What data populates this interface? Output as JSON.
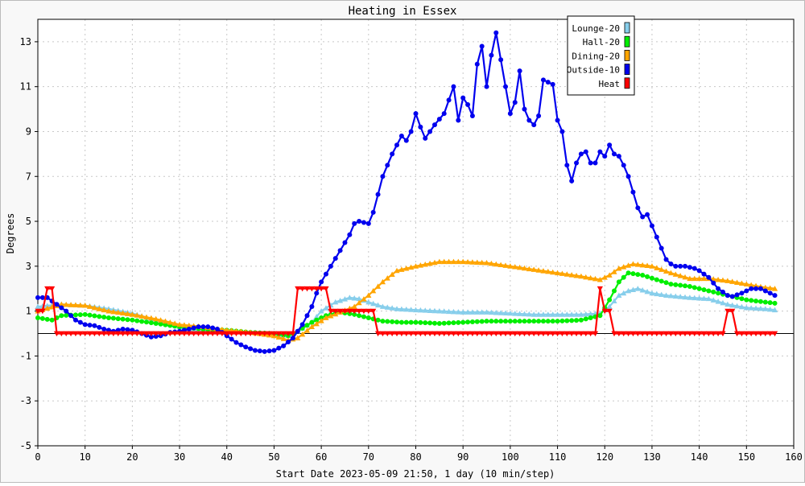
{
  "chart_data": {
    "type": "line",
    "title": "Heating in Essex",
    "xlabel": "Start Date 2023-05-09 21:50, 1 day (10 min/step)",
    "ylabel": "Degrees",
    "xlim": [
      0,
      160
    ],
    "ylim": [
      -5,
      14
    ],
    "x_ticks": [
      0,
      10,
      20,
      30,
      40,
      50,
      60,
      70,
      80,
      90,
      100,
      110,
      120,
      130,
      140,
      150,
      160
    ],
    "y_ticks": [
      -5,
      -3,
      -1,
      1,
      3,
      5,
      7,
      9,
      11,
      13
    ],
    "grid": true,
    "zero_line": true,
    "legend_position": "top-right",
    "series": [
      {
        "name": "Lounge-20",
        "color": "#87ceeb",
        "marker": "triangle",
        "points": [
          [
            0,
            1.2
          ],
          [
            5,
            1.3
          ],
          [
            10,
            1.25
          ],
          [
            15,
            1.1
          ],
          [
            20,
            0.9
          ],
          [
            25,
            0.6
          ],
          [
            30,
            0.3
          ],
          [
            35,
            0.15
          ],
          [
            40,
            0.1
          ],
          [
            45,
            0.05
          ],
          [
            50,
            0.0
          ],
          [
            53,
            -0.1
          ],
          [
            55,
            0.1
          ],
          [
            58,
            0.5
          ],
          [
            60,
            1.0
          ],
          [
            63,
            1.4
          ],
          [
            66,
            1.6
          ],
          [
            68,
            1.55
          ],
          [
            70,
            1.4
          ],
          [
            73,
            1.2
          ],
          [
            76,
            1.1
          ],
          [
            80,
            1.05
          ],
          [
            85,
            1.0
          ],
          [
            90,
            0.95
          ],
          [
            95,
            0.95
          ],
          [
            100,
            0.9
          ],
          [
            105,
            0.85
          ],
          [
            110,
            0.85
          ],
          [
            115,
            0.85
          ],
          [
            119,
            0.9
          ],
          [
            121,
            1.2
          ],
          [
            123,
            1.7
          ],
          [
            125,
            1.9
          ],
          [
            127,
            2.0
          ],
          [
            130,
            1.8
          ],
          [
            133,
            1.7
          ],
          [
            138,
            1.6
          ],
          [
            142,
            1.55
          ],
          [
            146,
            1.3
          ],
          [
            150,
            1.15
          ],
          [
            154,
            1.1
          ],
          [
            156,
            1.05
          ]
        ]
      },
      {
        "name": "Hall-20",
        "color": "#00ee00",
        "marker": "circle",
        "points": [
          [
            0,
            0.7
          ],
          [
            3,
            0.6
          ],
          [
            5,
            0.8
          ],
          [
            10,
            0.85
          ],
          [
            15,
            0.7
          ],
          [
            20,
            0.6
          ],
          [
            25,
            0.45
          ],
          [
            30,
            0.3
          ],
          [
            35,
            0.2
          ],
          [
            40,
            0.15
          ],
          [
            45,
            0.05
          ],
          [
            50,
            0.0
          ],
          [
            53,
            -0.1
          ],
          [
            55,
            0.1
          ],
          [
            58,
            0.5
          ],
          [
            61,
            0.8
          ],
          [
            64,
            0.95
          ],
          [
            67,
            0.85
          ],
          [
            70,
            0.7
          ],
          [
            73,
            0.55
          ],
          [
            77,
            0.5
          ],
          [
            80,
            0.5
          ],
          [
            85,
            0.45
          ],
          [
            90,
            0.5
          ],
          [
            95,
            0.55
          ],
          [
            100,
            0.55
          ],
          [
            105,
            0.55
          ],
          [
            110,
            0.55
          ],
          [
            115,
            0.6
          ],
          [
            119,
            0.8
          ],
          [
            121,
            1.5
          ],
          [
            123,
            2.3
          ],
          [
            125,
            2.7
          ],
          [
            128,
            2.6
          ],
          [
            131,
            2.4
          ],
          [
            134,
            2.2
          ],
          [
            138,
            2.1
          ],
          [
            142,
            1.9
          ],
          [
            146,
            1.7
          ],
          [
            150,
            1.5
          ],
          [
            154,
            1.4
          ],
          [
            156,
            1.35
          ]
        ]
      },
      {
        "name": "Dining-20",
        "color": "#ffa500",
        "marker": "triangle",
        "points": [
          [
            0,
            1.0
          ],
          [
            5,
            1.3
          ],
          [
            10,
            1.25
          ],
          [
            15,
            1.0
          ],
          [
            20,
            0.85
          ],
          [
            25,
            0.65
          ],
          [
            30,
            0.4
          ],
          [
            35,
            0.3
          ],
          [
            40,
            0.15
          ],
          [
            45,
            0.05
          ],
          [
            50,
            -0.1
          ],
          [
            53,
            -0.3
          ],
          [
            55,
            -0.2
          ],
          [
            58,
            0.3
          ],
          [
            61,
            0.7
          ],
          [
            64,
            0.95
          ],
          [
            67,
            1.2
          ],
          [
            70,
            1.7
          ],
          [
            73,
            2.3
          ],
          [
            76,
            2.8
          ],
          [
            80,
            3.0
          ],
          [
            85,
            3.2
          ],
          [
            90,
            3.2
          ],
          [
            95,
            3.15
          ],
          [
            100,
            3.0
          ],
          [
            105,
            2.85
          ],
          [
            110,
            2.7
          ],
          [
            115,
            2.55
          ],
          [
            119,
            2.4
          ],
          [
            121,
            2.6
          ],
          [
            123,
            2.9
          ],
          [
            126,
            3.1
          ],
          [
            130,
            3.0
          ],
          [
            134,
            2.7
          ],
          [
            138,
            2.45
          ],
          [
            142,
            2.45
          ],
          [
            146,
            2.35
          ],
          [
            150,
            2.2
          ],
          [
            154,
            2.05
          ],
          [
            156,
            2.0
          ]
        ]
      },
      {
        "name": "Outside-10",
        "color": "#0000ee",
        "marker": "circle",
        "points": [
          [
            0,
            1.6
          ],
          [
            2,
            1.6
          ],
          [
            4,
            1.3
          ],
          [
            6,
            1.0
          ],
          [
            8,
            0.6
          ],
          [
            10,
            0.4
          ],
          [
            12,
            0.35
          ],
          [
            14,
            0.2
          ],
          [
            16,
            0.1
          ],
          [
            18,
            0.2
          ],
          [
            20,
            0.15
          ],
          [
            22,
            0.0
          ],
          [
            24,
            -0.15
          ],
          [
            26,
            -0.1
          ],
          [
            28,
            0.05
          ],
          [
            30,
            0.1
          ],
          [
            32,
            0.2
          ],
          [
            34,
            0.3
          ],
          [
            36,
            0.3
          ],
          [
            38,
            0.2
          ],
          [
            40,
            -0.1
          ],
          [
            42,
            -0.4
          ],
          [
            44,
            -0.6
          ],
          [
            46,
            -0.75
          ],
          [
            48,
            -0.8
          ],
          [
            50,
            -0.75
          ],
          [
            52,
            -0.55
          ],
          [
            54,
            -0.2
          ],
          [
            56,
            0.4
          ],
          [
            58,
            1.2
          ],
          [
            59,
            1.8
          ],
          [
            60,
            2.3
          ],
          [
            62,
            3.0
          ],
          [
            64,
            3.7
          ],
          [
            66,
            4.4
          ],
          [
            67,
            4.9
          ],
          [
            68,
            5.0
          ],
          [
            70,
            4.9
          ],
          [
            71,
            5.4
          ],
          [
            72,
            6.2
          ],
          [
            73,
            7.0
          ],
          [
            75,
            8.0
          ],
          [
            77,
            8.8
          ],
          [
            78,
            8.6
          ],
          [
            79,
            9.0
          ],
          [
            80,
            9.8
          ],
          [
            81,
            9.2
          ],
          [
            82,
            8.7
          ],
          [
            84,
            9.3
          ],
          [
            86,
            9.8
          ],
          [
            87,
            10.4
          ],
          [
            88,
            11.0
          ],
          [
            89,
            9.5
          ],
          [
            90,
            10.5
          ],
          [
            91,
            10.2
          ],
          [
            92,
            9.7
          ],
          [
            93,
            12.0
          ],
          [
            94,
            12.8
          ],
          [
            95,
            11.0
          ],
          [
            96,
            12.4
          ],
          [
            97,
            13.4
          ],
          [
            98,
            12.2
          ],
          [
            99,
            11.0
          ],
          [
            100,
            9.8
          ],
          [
            101,
            10.3
          ],
          [
            102,
            11.7
          ],
          [
            103,
            10.0
          ],
          [
            104,
            9.5
          ],
          [
            105,
            9.3
          ],
          [
            106,
            9.7
          ],
          [
            107,
            11.3
          ],
          [
            108,
            11.2
          ],
          [
            109,
            11.1
          ],
          [
            110,
            9.5
          ],
          [
            111,
            9.0
          ],
          [
            112,
            7.5
          ],
          [
            113,
            6.8
          ],
          [
            114,
            7.6
          ],
          [
            115,
            8.0
          ],
          [
            116,
            8.1
          ],
          [
            117,
            7.6
          ],
          [
            118,
            7.6
          ],
          [
            119,
            8.1
          ],
          [
            120,
            7.9
          ],
          [
            121,
            8.4
          ],
          [
            122,
            8.0
          ],
          [
            123,
            7.9
          ],
          [
            124,
            7.5
          ],
          [
            125,
            7.0
          ],
          [
            126,
            6.3
          ],
          [
            127,
            5.6
          ],
          [
            128,
            5.2
          ],
          [
            129,
            5.3
          ],
          [
            130,
            4.8
          ],
          [
            131,
            4.3
          ],
          [
            132,
            3.8
          ],
          [
            133,
            3.3
          ],
          [
            134,
            3.1
          ],
          [
            135,
            3.0
          ],
          [
            137,
            3.0
          ],
          [
            139,
            2.9
          ],
          [
            140,
            2.8
          ],
          [
            142,
            2.5
          ],
          [
            144,
            2.0
          ],
          [
            146,
            1.7
          ],
          [
            147,
            1.65
          ],
          [
            149,
            1.8
          ],
          [
            151,
            2.0
          ],
          [
            153,
            2.0
          ],
          [
            155,
            1.8
          ],
          [
            156,
            1.7
          ]
        ]
      },
      {
        "name": "Heat",
        "color": "#ff0000",
        "marker": "triangle-down",
        "points": [
          [
            0,
            1.0
          ],
          [
            1,
            1.0
          ],
          [
            2,
            2.0
          ],
          [
            3,
            2.0
          ],
          [
            4,
            0.0
          ],
          [
            54,
            0.0
          ],
          [
            55,
            2.0
          ],
          [
            61,
            2.0
          ],
          [
            62,
            1.0
          ],
          [
            71,
            1.0
          ],
          [
            72,
            0.0
          ],
          [
            118,
            0.0
          ],
          [
            119,
            2.0
          ],
          [
            120,
            1.0
          ],
          [
            121,
            1.0
          ],
          [
            122,
            0.0
          ],
          [
            145,
            0.0
          ],
          [
            146,
            1.0
          ],
          [
            147,
            1.0
          ],
          [
            148,
            0.0
          ],
          [
            156,
            0.0
          ]
        ]
      }
    ]
  }
}
